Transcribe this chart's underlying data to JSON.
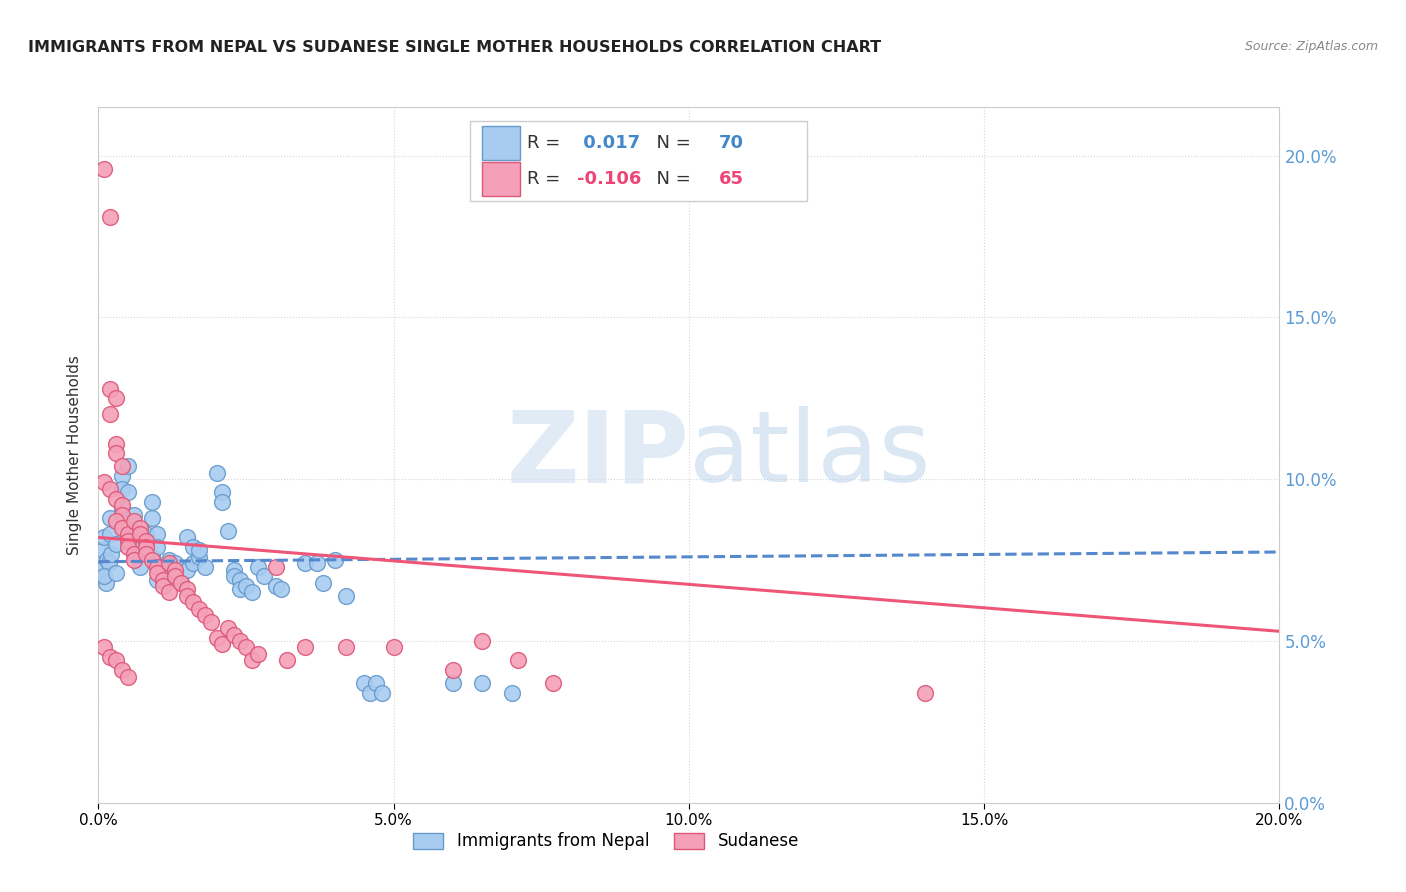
{
  "title": "IMMIGRANTS FROM NEPAL VS SUDANESE SINGLE MOTHER HOUSEHOLDS CORRELATION CHART",
  "source": "Source: ZipAtlas.com",
  "ylabel_label": "Single Mother Households",
  "x_min": 0.0,
  "x_max": 0.2,
  "y_min": 0.0,
  "y_max": 0.215,
  "nepal_R": 0.017,
  "nepal_N": 70,
  "sudanese_R": -0.106,
  "sudanese_N": 65,
  "nepal_color": "#A8CCF0",
  "sudanese_color": "#F4A0B8",
  "nepal_edge_color": "#6699CC",
  "sudanese_edge_color": "#DD5577",
  "nepal_line_color": "#5588CC",
  "sudanese_line_color": "#EE5577",
  "watermark_zip": "ZIP",
  "watermark_atlas": "atlas",
  "grid_color": "#CCCCCC",
  "nepal_scatter": [
    [
      0.0005,
      0.072
    ],
    [
      0.0008,
      0.078
    ],
    [
      0.001,
      0.082
    ],
    [
      0.0012,
      0.068
    ],
    [
      0.0015,
      0.075
    ],
    [
      0.002,
      0.088
    ],
    [
      0.002,
      0.083
    ],
    [
      0.0018,
      0.074
    ],
    [
      0.001,
      0.07
    ],
    [
      0.0022,
      0.077
    ],
    [
      0.003,
      0.071
    ],
    [
      0.003,
      0.08
    ],
    [
      0.004,
      0.101
    ],
    [
      0.004,
      0.097
    ],
    [
      0.005,
      0.104
    ],
    [
      0.004,
      0.091
    ],
    [
      0.005,
      0.096
    ],
    [
      0.006,
      0.084
    ],
    [
      0.006,
      0.089
    ],
    [
      0.007,
      0.077
    ],
    [
      0.007,
      0.081
    ],
    [
      0.008,
      0.078
    ],
    [
      0.008,
      0.083
    ],
    [
      0.007,
      0.073
    ],
    [
      0.009,
      0.088
    ],
    [
      0.009,
      0.093
    ],
    [
      0.01,
      0.083
    ],
    [
      0.009,
      0.076
    ],
    [
      0.01,
      0.079
    ],
    [
      0.01,
      0.069
    ],
    [
      0.011,
      0.073
    ],
    [
      0.011,
      0.069
    ],
    [
      0.012,
      0.07
    ],
    [
      0.012,
      0.075
    ],
    [
      0.013,
      0.074
    ],
    [
      0.013,
      0.069
    ],
    [
      0.014,
      0.068
    ],
    [
      0.015,
      0.072
    ],
    [
      0.015,
      0.082
    ],
    [
      0.016,
      0.079
    ],
    [
      0.016,
      0.074
    ],
    [
      0.017,
      0.076
    ],
    [
      0.017,
      0.078
    ],
    [
      0.018,
      0.073
    ],
    [
      0.02,
      0.102
    ],
    [
      0.021,
      0.096
    ],
    [
      0.021,
      0.093
    ],
    [
      0.022,
      0.084
    ],
    [
      0.023,
      0.072
    ],
    [
      0.023,
      0.07
    ],
    [
      0.024,
      0.069
    ],
    [
      0.024,
      0.066
    ],
    [
      0.025,
      0.067
    ],
    [
      0.026,
      0.065
    ],
    [
      0.027,
      0.073
    ],
    [
      0.028,
      0.07
    ],
    [
      0.03,
      0.067
    ],
    [
      0.031,
      0.066
    ],
    [
      0.035,
      0.074
    ],
    [
      0.037,
      0.074
    ],
    [
      0.038,
      0.068
    ],
    [
      0.04,
      0.075
    ],
    [
      0.042,
      0.064
    ],
    [
      0.045,
      0.037
    ],
    [
      0.046,
      0.034
    ],
    [
      0.047,
      0.037
    ],
    [
      0.048,
      0.034
    ],
    [
      0.06,
      0.037
    ],
    [
      0.065,
      0.037
    ],
    [
      0.07,
      0.034
    ]
  ],
  "sudanese_scatter": [
    [
      0.001,
      0.196
    ],
    [
      0.002,
      0.181
    ],
    [
      0.002,
      0.128
    ],
    [
      0.003,
      0.125
    ],
    [
      0.002,
      0.12
    ],
    [
      0.003,
      0.111
    ],
    [
      0.003,
      0.108
    ],
    [
      0.004,
      0.104
    ],
    [
      0.001,
      0.099
    ],
    [
      0.002,
      0.097
    ],
    [
      0.003,
      0.094
    ],
    [
      0.004,
      0.092
    ],
    [
      0.004,
      0.089
    ],
    [
      0.003,
      0.087
    ],
    [
      0.004,
      0.085
    ],
    [
      0.005,
      0.083
    ],
    [
      0.005,
      0.081
    ],
    [
      0.005,
      0.079
    ],
    [
      0.006,
      0.077
    ],
    [
      0.006,
      0.075
    ],
    [
      0.006,
      0.087
    ],
    [
      0.007,
      0.085
    ],
    [
      0.007,
      0.083
    ],
    [
      0.008,
      0.081
    ],
    [
      0.008,
      0.079
    ],
    [
      0.008,
      0.077
    ],
    [
      0.009,
      0.075
    ],
    [
      0.01,
      0.073
    ],
    [
      0.01,
      0.071
    ],
    [
      0.011,
      0.069
    ],
    [
      0.011,
      0.067
    ],
    [
      0.012,
      0.065
    ],
    [
      0.012,
      0.074
    ],
    [
      0.013,
      0.072
    ],
    [
      0.013,
      0.07
    ],
    [
      0.014,
      0.068
    ],
    [
      0.015,
      0.066
    ],
    [
      0.015,
      0.064
    ],
    [
      0.016,
      0.062
    ],
    [
      0.017,
      0.06
    ],
    [
      0.018,
      0.058
    ],
    [
      0.019,
      0.056
    ],
    [
      0.02,
      0.051
    ],
    [
      0.021,
      0.049
    ],
    [
      0.022,
      0.054
    ],
    [
      0.023,
      0.052
    ],
    [
      0.024,
      0.05
    ],
    [
      0.025,
      0.048
    ],
    [
      0.026,
      0.044
    ],
    [
      0.027,
      0.046
    ],
    [
      0.03,
      0.073
    ],
    [
      0.032,
      0.044
    ],
    [
      0.035,
      0.048
    ],
    [
      0.042,
      0.048
    ],
    [
      0.05,
      0.048
    ],
    [
      0.06,
      0.041
    ],
    [
      0.065,
      0.05
    ],
    [
      0.071,
      0.044
    ],
    [
      0.077,
      0.037
    ],
    [
      0.14,
      0.034
    ],
    [
      0.001,
      0.048
    ],
    [
      0.002,
      0.045
    ],
    [
      0.003,
      0.044
    ],
    [
      0.004,
      0.041
    ],
    [
      0.005,
      0.039
    ]
  ],
  "nepal_trendline": [
    [
      0.0,
      0.0745
    ],
    [
      0.2,
      0.0775
    ]
  ],
  "sudanese_trendline": [
    [
      0.0,
      0.082
    ],
    [
      0.2,
      0.053
    ]
  ]
}
